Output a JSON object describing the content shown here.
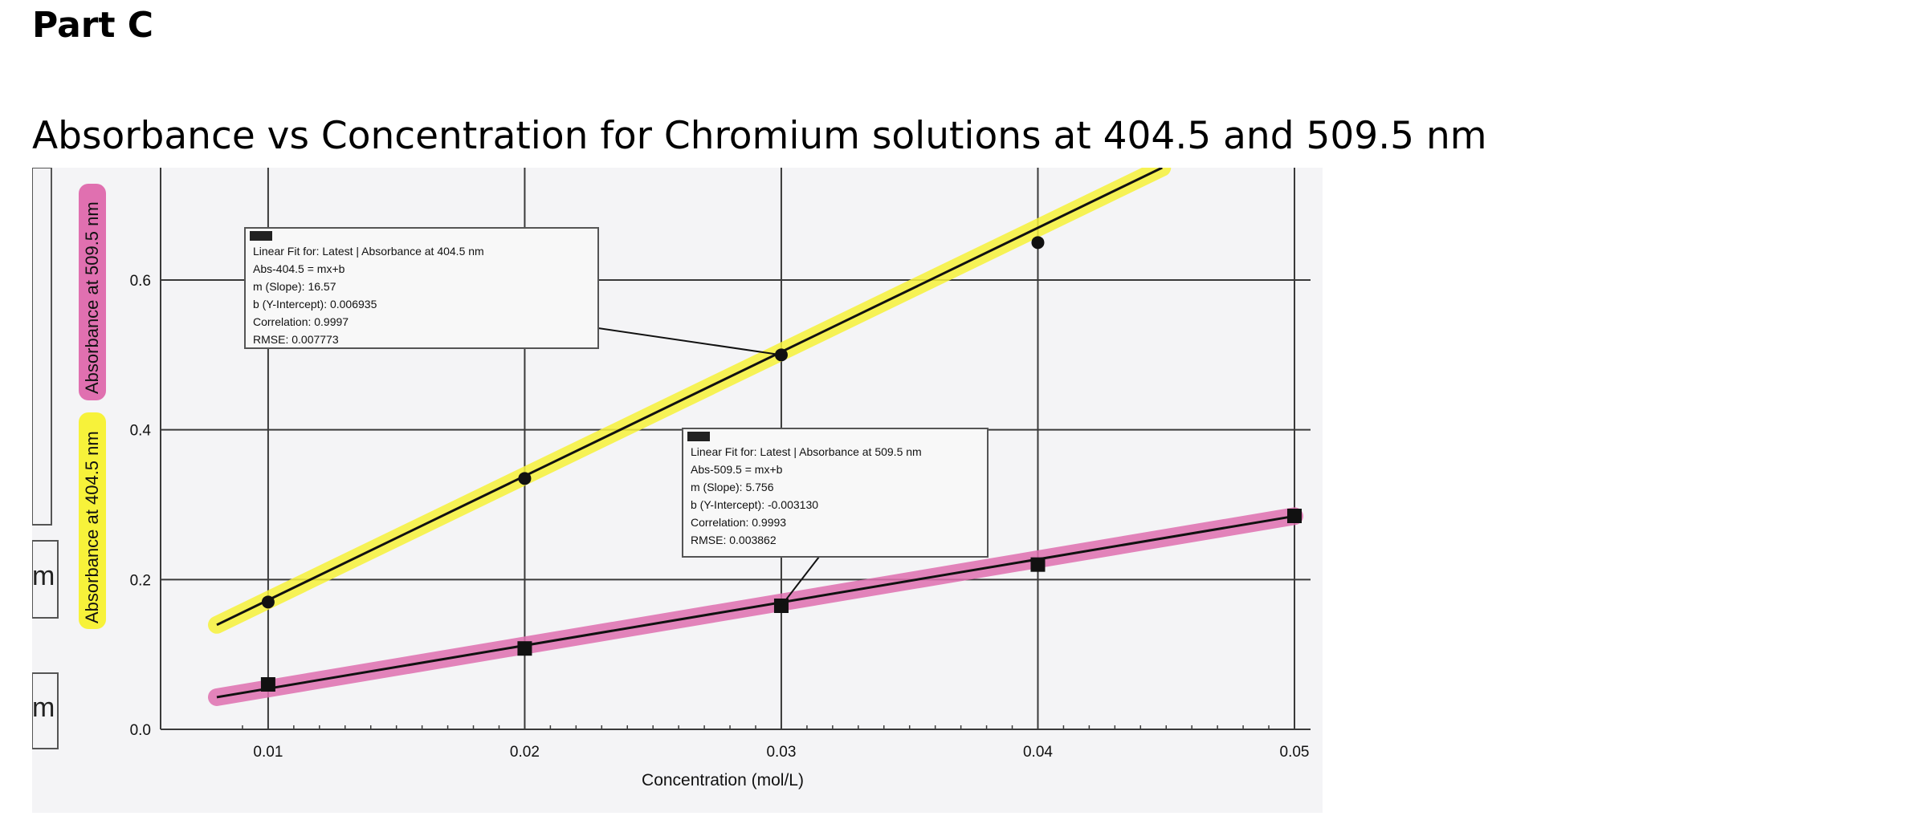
{
  "page": {
    "heading": "Part C",
    "title": "Absorbance vs Concentration for Chromium solutions at 404.5 and 509.5 nm"
  },
  "side_fragments": [
    "m",
    "m"
  ],
  "colors": {
    "highlight_404": "#f7f23a",
    "highlight_509": "#e070b0",
    "grid": "#3a3a3a",
    "paper": "#f4f4f6"
  },
  "chart_data": {
    "type": "scatter",
    "xlabel": "Concentration (mol/L)",
    "ylabel_primary": "Absorbance at 404.5 nm",
    "ylabel_secondary": "Absorbance at 509.5 nm",
    "xlim": [
      0.008,
      0.05
    ],
    "ylim": [
      0.0,
      0.75
    ],
    "x_ticks": [
      "0.01",
      "0.02",
      "0.03",
      "0.04",
      "0.05"
    ],
    "y_ticks": [
      "0.0",
      "0.2",
      "0.4",
      "0.6"
    ],
    "grid": true,
    "series": [
      {
        "name": "Absorbance at 404.5 nm",
        "marker": "circle",
        "highlight": "#f7f23a",
        "points": [
          [
            0.01,
            0.17
          ],
          [
            0.02,
            0.335
          ],
          [
            0.03,
            0.5
          ],
          [
            0.04,
            0.65
          ]
        ],
        "fit": {
          "slope": 16.57,
          "intercept": 0.006935
        }
      },
      {
        "name": "Absorbance at 509.5 nm",
        "marker": "square",
        "highlight": "#e070b0",
        "points": [
          [
            0.01,
            0.06
          ],
          [
            0.02,
            0.108
          ],
          [
            0.03,
            0.165
          ],
          [
            0.04,
            0.22
          ],
          [
            0.05,
            0.285
          ]
        ],
        "fit": {
          "slope": 5.756,
          "intercept": -0.00313
        }
      }
    ],
    "annotations": [
      {
        "id": "box404",
        "target": [
          0.03,
          0.5
        ],
        "lines": [
          "Linear Fit for: Latest | Absorbance at 404.5 nm",
          "Abs-404.5 = mx+b",
          "m (Slope): 16.57",
          "b (Y-Intercept): 0.006935",
          "Correlation: 0.9997",
          "RMSE: 0.007773"
        ]
      },
      {
        "id": "box509",
        "target": [
          0.03,
          0.165
        ],
        "lines": [
          "Linear Fit for: Latest | Absorbance at 509.5 nm",
          "Abs-509.5 = mx+b",
          "m (Slope): 5.756",
          "b (Y-Intercept): -0.003130",
          "Correlation: 0.9993",
          "RMSE: 0.003862"
        ]
      }
    ]
  }
}
